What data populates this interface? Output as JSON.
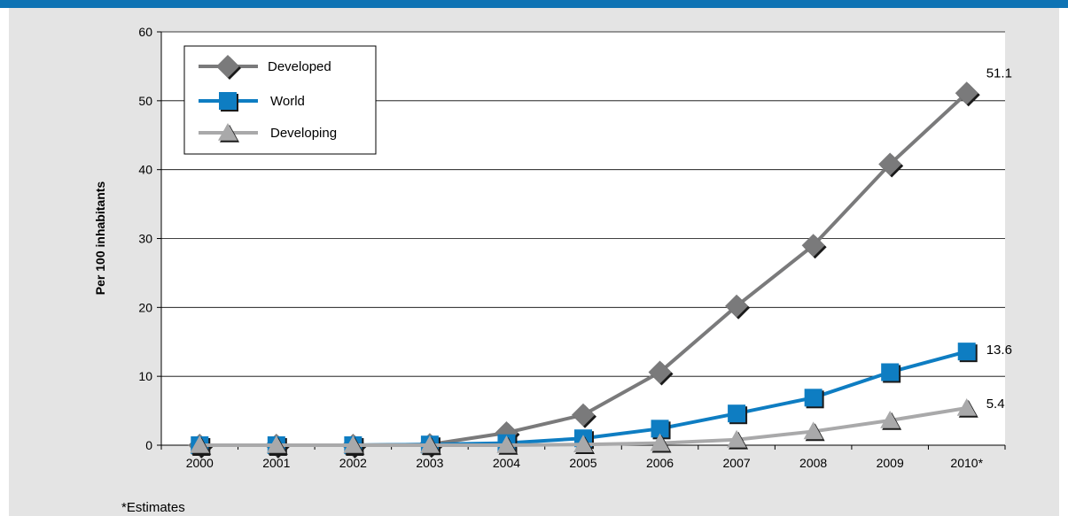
{
  "footnote": "*Estimates",
  "colors": {
    "header_bar": "#0e73b4",
    "panel_background": "#e4e4e4",
    "plot_background": "#ffffff",
    "developed": "#7a7a7b",
    "world": "#0e7dc2",
    "developing": "#a9a9aa"
  },
  "chart_data": {
    "type": "line",
    "title": "",
    "xlabel": "",
    "ylabel": "Per 100 inhabitants",
    "categories": [
      "2000",
      "2001",
      "2002",
      "2003",
      "2004",
      "2005",
      "2006",
      "2007",
      "2008",
      "2009",
      "2010*"
    ],
    "ylim": [
      0,
      60
    ],
    "yticks": [
      "0",
      "10",
      "20",
      "30",
      "40",
      "50",
      "60"
    ],
    "grid": "horizontal",
    "legend_position": "top-left",
    "series": [
      {
        "name": "Developed",
        "marker": "diamond",
        "color": "#7a7a7b",
        "values": [
          0,
          0,
          0,
          0.1,
          1.8,
          4.4,
          10.6,
          20.2,
          29,
          40.8,
          51.1
        ],
        "end_label": "51.1"
      },
      {
        "name": "World",
        "marker": "square",
        "color": "#0e7dc2",
        "values": [
          0,
          0,
          0,
          0.1,
          0.3,
          1,
          2.4,
          4.6,
          6.9,
          10.6,
          13.6
        ],
        "end_label": "13.6"
      },
      {
        "name": "Developing",
        "marker": "triangle",
        "color": "#a9a9aa",
        "values": [
          0,
          0,
          0,
          0,
          0,
          0.1,
          0.3,
          0.8,
          2,
          3.6,
          5.4
        ],
        "end_label": "5.4"
      }
    ]
  }
}
